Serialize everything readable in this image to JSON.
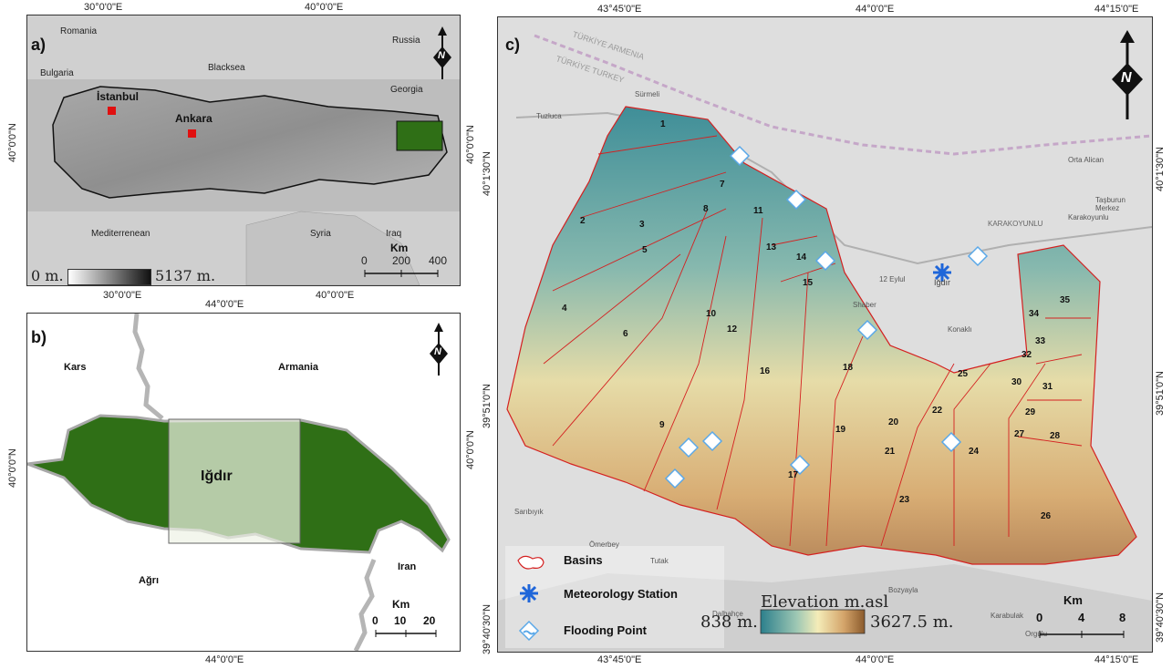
{
  "panel_a": {
    "label": "a)",
    "top_coords": [
      "30°0'0\"E",
      "40°0'0\"E"
    ],
    "bottom_coords": [
      "30°0'0\"E",
      "40°0'0\"E"
    ],
    "left_coord": "40°0'0\"N",
    "right_coord": "40°0'0\"N",
    "places": {
      "romania": "Romania",
      "russia": "Russia",
      "bulgaria": "Bulgaria",
      "blacksea": "Blacksea",
      "georgia": "Georgia",
      "istanbul": "İstanbul",
      "ankara": "Ankara",
      "mediterrenean": "Mediterrenean",
      "syria": "Syria",
      "iraq": "Iraq"
    },
    "scale": {
      "unit": "Km",
      "ticks": [
        "0",
        "200",
        "400"
      ]
    },
    "legend": {
      "min": "0 m.",
      "max": "5137 m."
    }
  },
  "panel_b": {
    "label": "b)",
    "top_coord": "44°0'0\"E",
    "bottom_coord": "44°0'0\"E",
    "left_coord": "40°0'0\"N",
    "right_coord": "40°0'0\"N",
    "places": {
      "kars": "Kars",
      "armania": "Armania",
      "igdir": "Iğdır",
      "agri": "Ağrı",
      "iran": "Iran"
    },
    "scale": {
      "unit": "Km",
      "ticks": [
        "0",
        "10",
        "20"
      ]
    }
  },
  "panel_c": {
    "label": "c)",
    "top_coords": [
      "43°45'0\"E",
      "44°0'0\"E",
      "44°15'0\"E"
    ],
    "bottom_coords": [
      "43°45'0\"E",
      "44°0'0\"E",
      "44°15'0\"E"
    ],
    "left_coords": [
      "40°1'30\"N",
      "39°51'0\"N",
      "39°40'30\"N"
    ],
    "right_coords": [
      "40°1'30\"N",
      "39°51'0\"N",
      "39°40'30\"N"
    ],
    "places": {
      "armenia_border": "TÜRKİYE ARMENIA",
      "turkey_border": "TÜRKİYE TURKEY",
      "surmeli": "Sürmeli",
      "tuzluca": "Tuzluca",
      "orta_alican": "Orta Alican",
      "karakoyunlu": "KARAKOYUNLU",
      "karakoyunlu2": "Karakoyunlu",
      "tasburun": "Taşburun Merkez",
      "igdir": "Iğdır",
      "eylul": "12 Eylul",
      "konakli": "Konaklı",
      "shaber": "Shaber",
      "saribiyik": "Sarıbıyık",
      "omerbey": "Ömerbey",
      "tutak": "Tutak",
      "dalbahce": "Dalbahçe",
      "bozyayla": "Bozyayla",
      "karabulak": "Karabulak",
      "orgulu": "Orgulu"
    },
    "basins": [
      "1",
      "2",
      "3",
      "4",
      "5",
      "6",
      "7",
      "8",
      "9",
      "10",
      "11",
      "12",
      "13",
      "14",
      "15",
      "16",
      "17",
      "18",
      "19",
      "20",
      "21",
      "22",
      "23",
      "24",
      "25",
      "26",
      "27",
      "28",
      "29",
      "30",
      "31",
      "32",
      "33",
      "34",
      "35"
    ],
    "legend": {
      "basins": "Basins",
      "station": "Meteorology Station",
      "flooding": "Flooding Point",
      "elev_title": "Elevation m.asl",
      "elev_min": "838 m.",
      "elev_max": "3627.5 m."
    },
    "scale": {
      "unit": "Km",
      "ticks": [
        "0",
        "4",
        "8"
      ]
    }
  },
  "north_label": "N",
  "colors": {
    "green": "#2f6f16",
    "light_green": "#b9cf9c",
    "basin_border": "#d42020",
    "station_blue": "#1f66d9",
    "flood_blue": "#5aa8e8"
  }
}
